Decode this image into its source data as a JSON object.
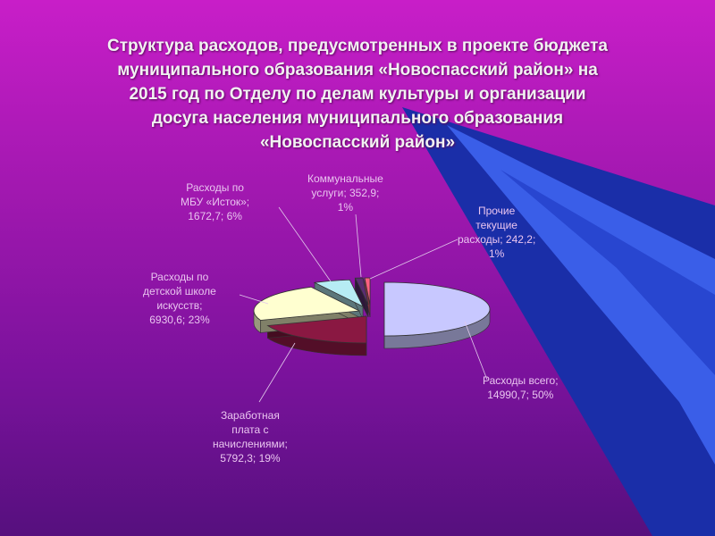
{
  "slide": {
    "title_lines": [
      "Структура расходов, предусмотренных в проекте бюджета",
      "муниципального образования «Новоспасский район» на",
      "2015 год по Отделу по делам культуры и организации",
      "досуга населения муниципального образования",
      "«Новоспасский район»"
    ]
  },
  "colors": {
    "background_top": "#c81ec8",
    "background_bottom": "#56107e",
    "stripe_dark": "#1a2ea8",
    "stripe_light": "#3a5ee8",
    "slice_total": "#c8c8ff",
    "slice_salary": "#8a1842",
    "slice_school": "#ffffd0",
    "slice_istok": "#b6ecf4",
    "slice_utilities": "#5a2c72",
    "slice_other": "#ff6080"
  },
  "chart_data": {
    "type": "pie",
    "title": "",
    "categories": [
      "Расходы всего",
      "Заработная плата с начислениями",
      "Расходы по детской школе искусств",
      "Расходы по МБУ «Исток»",
      "Коммунальные услуги",
      "Прочие текущие расходы"
    ],
    "values": [
      14990.7,
      5792.3,
      6930.6,
      1672.7,
      352.9,
      242.2
    ],
    "percents": [
      "50%",
      "19%",
      "23%",
      "6%",
      "1%",
      "1%"
    ],
    "data_labels": [
      [
        "Расходы всего;",
        "14990,7; 50%"
      ],
      [
        "Заработная",
        "плата с",
        "начислениями;",
        "5792,3; 19%"
      ],
      [
        "Расходы по",
        "детской школе",
        "искусств;",
        "6930,6; 23%"
      ],
      [
        "Расходы по",
        "МБУ «Исток»;",
        "1672,7; 6%"
      ],
      [
        "Коммунальные",
        "услуги; 352,9;",
        "1%"
      ],
      [
        "Прочие",
        "текущие",
        "расходы; 242,2;",
        "1%"
      ]
    ],
    "exploded": true,
    "three_d": true
  }
}
